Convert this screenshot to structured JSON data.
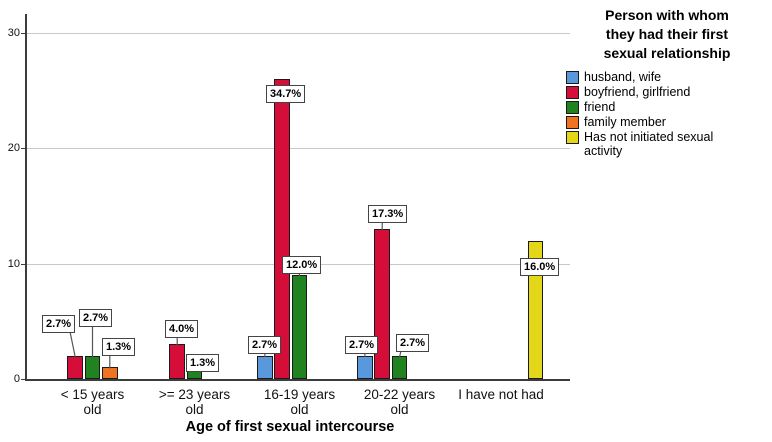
{
  "chart_data": {
    "type": "bar",
    "title": "",
    "xlabel": "Age of first sexual intercourse",
    "ylabel": "",
    "ylim": [
      0,
      31.7
    ],
    "yticks": [
      0,
      10,
      20,
      30
    ],
    "grid": "horizontal",
    "categories": [
      "< 15 years old",
      ">= 23 years old",
      "16-19 years old",
      "20-22 years old",
      "I have not had"
    ],
    "category_lines": [
      [
        "< 15 years",
        "old"
      ],
      [
        ">= 23 years",
        "old"
      ],
      [
        "16-19 years",
        "old"
      ],
      [
        "20-22 years",
        "old"
      ],
      [
        "I have not had"
      ]
    ],
    "legend": {
      "title": "Person with whom they had their first sexual relationship",
      "title_lines": [
        "Person with whom",
        "they had their first",
        "sexual relationship"
      ],
      "position": "right",
      "items": [
        "husband, wife",
        "boyfriend, girlfriend",
        "friend",
        "family member",
        "Has not initiated sexual activity"
      ]
    },
    "series": [
      {
        "name": "husband, wife",
        "color": "#5898DB",
        "values": [
          0,
          0,
          2,
          2,
          0
        ],
        "percent_labels": [
          "",
          "",
          "2.7%",
          "2.7%",
          ""
        ]
      },
      {
        "name": "boyfriend, girlfriend",
        "color": "#D40E38",
        "values": [
          2,
          3,
          26,
          13,
          0
        ],
        "percent_labels": [
          "2.7%",
          "4.0%",
          "34.7%",
          "17.3%",
          ""
        ]
      },
      {
        "name": "friend",
        "color": "#21831F",
        "values": [
          2,
          1,
          9,
          2,
          0
        ],
        "percent_labels": [
          "2.7%",
          "1.3%",
          "12.0%",
          "2.7%",
          ""
        ]
      },
      {
        "name": "family member",
        "color": "#F0731F",
        "values": [
          1,
          0,
          0,
          0,
          0
        ],
        "percent_labels": [
          "1.3%",
          "",
          "",
          "",
          ""
        ]
      },
      {
        "name": "Has not initiated sexual activity",
        "color": "#E4D71A",
        "values": [
          0,
          0,
          0,
          0,
          12
        ],
        "percent_labels": [
          "",
          "",
          "",
          "",
          "16.0%"
        ]
      }
    ],
    "colors": {
      "bar_border": "#1a1a1a",
      "gridline": "#c9c9c9",
      "axis": "#3c3c3c",
      "callout_border": "#444444",
      "callout_bg": "#ffffff"
    }
  }
}
